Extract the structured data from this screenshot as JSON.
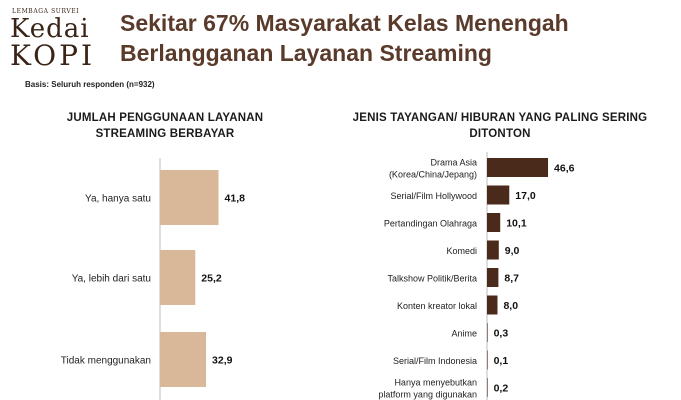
{
  "logo": {
    "small": "LEMBAGA SURVEI",
    "line1": "Kedai",
    "line2": "KOPI"
  },
  "title_line1": "Sekitar 67% Masyarakat Kelas Menengah",
  "title_line2": "Berlangganan Layanan Streaming",
  "basis": "Basis: Seluruh responden (n=932)",
  "colors": {
    "title": "#5a3a2a",
    "left_bar": "#d9b89a",
    "right_bar": "#4a2a1a",
    "axis": "#bdbdbd"
  },
  "chart_data": [
    {
      "type": "bar",
      "orientation": "horizontal",
      "title_lines": [
        "JUMLAH PENGGUNAAN LAYANAN",
        "STREAMING BERBAYAR"
      ],
      "categories": [
        "Ya, hanya satu",
        "Ya, lebih dari satu",
        "Tidak menggunakan"
      ],
      "values": [
        41.8,
        25.2,
        32.9
      ],
      "value_labels": [
        "41,8",
        "25,2",
        "32,9"
      ],
      "bar_color": "#d9b89a"
    },
    {
      "type": "bar",
      "orientation": "horizontal",
      "title_lines": [
        "JENIS TAYANGAN/ HIBURAN YANG PALING SERING",
        "DITONTON"
      ],
      "categories": [
        [
          "Drama Asia",
          "(Korea/China/Jepang)"
        ],
        [
          "Serial/Film Hollywood"
        ],
        [
          "Pertandingan Olahraga"
        ],
        [
          "Komedi"
        ],
        [
          "Talkshow Politik/Berita"
        ],
        [
          "Konten kreator lokal"
        ],
        [
          "Anime"
        ],
        [
          "Serial/Film Indonesia"
        ],
        [
          "Hanya menyebutkan",
          "platform yang digunakan"
        ]
      ],
      "values": [
        46.6,
        17.0,
        10.1,
        9.0,
        8.7,
        8.0,
        0.3,
        0.1,
        0.2
      ],
      "value_labels": [
        "46,6",
        "17,0",
        "10,1",
        "9,0",
        "8,7",
        "8,0",
        "0,3",
        "0,1",
        "0,2"
      ],
      "bar_color": "#4a2a1a"
    }
  ]
}
